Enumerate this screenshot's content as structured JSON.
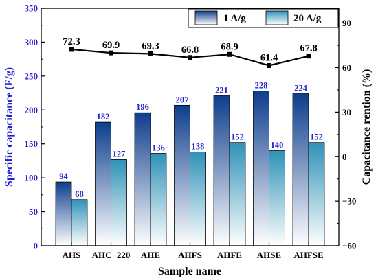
{
  "chart_data": {
    "type": "bar",
    "categories": [
      "AHS",
      "AHC−220",
      "AHE",
      "AHFS",
      "AHFE",
      "AHSE",
      "AHFSE"
    ],
    "series": [
      {
        "name": "1 A/g",
        "values": [
          94,
          182,
          196,
          207,
          221,
          228,
          224
        ],
        "labels": [
          "94",
          "182",
          "196",
          "207",
          "221",
          "228",
          "224"
        ],
        "color": "#0d3d8c"
      },
      {
        "name": "20 A/g",
        "values": [
          68,
          127,
          136,
          138,
          152,
          140,
          152
        ],
        "labels": [
          "68",
          "127",
          "136",
          "138",
          "152",
          "140",
          "152"
        ],
        "color": "#2e92b8"
      }
    ],
    "retention": {
      "values": [
        72.3,
        69.9,
        69.3,
        66.8,
        68.9,
        61.4,
        67.8
      ],
      "labels": [
        "72.3",
        "69.9",
        "69.3",
        "66.8",
        "68.9",
        "61.4",
        "67.8"
      ]
    },
    "xlabel": "Sample name",
    "ylabel": "Specific capacitance (F/g)",
    "y2label": "Capacitance rention (%)",
    "ylim": [
      0,
      350
    ],
    "yticks": [
      "0",
      "50",
      "100",
      "150",
      "200",
      "250",
      "300",
      "350"
    ],
    "y2lim": [
      -60,
      100
    ],
    "y2ticks": [
      "−60",
      "−30",
      "0",
      "30",
      "60",
      "90"
    ],
    "legend": "top-right",
    "colors": {
      "left_axis": "#1f1fd1",
      "label_text": "#1f1fd1",
      "line": "#000000"
    }
  }
}
